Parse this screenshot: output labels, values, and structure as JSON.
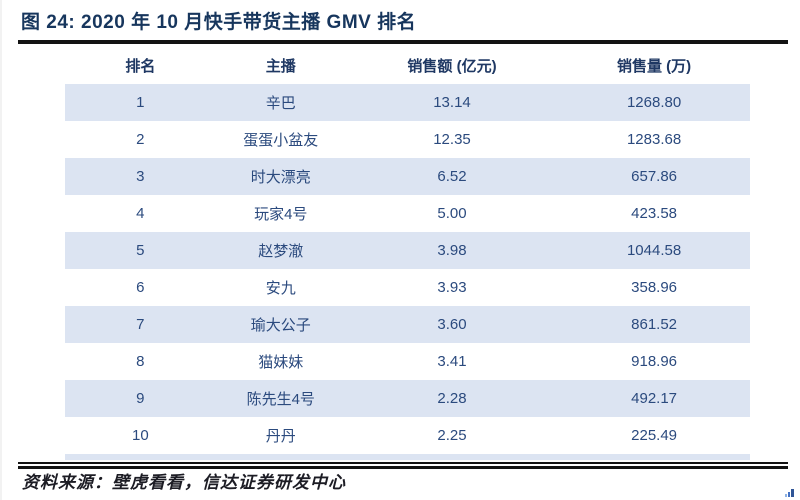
{
  "page": {
    "title": "图 24: 2020 年 10 月快手带货主播 GMV 排名",
    "source_note": "资料来源：壁虎看看，信达证券研发中心"
  },
  "table": {
    "columns": [
      "排名",
      "主播",
      "销售额 (亿元)",
      "销售量 (万)"
    ],
    "rows": [
      [
        "1",
        "辛巴",
        "13.14",
        "1268.80"
      ],
      [
        "2",
        "蛋蛋小盆友",
        "12.35",
        "1283.68"
      ],
      [
        "3",
        "时大漂亮",
        "6.52",
        "657.86"
      ],
      [
        "4",
        "玩家4号",
        "5.00",
        "423.58"
      ],
      [
        "5",
        "赵梦澈",
        "3.98",
        "1044.58"
      ],
      [
        "6",
        "安九",
        "3.93",
        "358.96"
      ],
      [
        "7",
        "瑜大公子",
        "3.60",
        "861.52"
      ],
      [
        "8",
        "猫妹妹",
        "3.41",
        "918.96"
      ],
      [
        "9",
        "陈先生4号",
        "2.28",
        "492.17"
      ],
      [
        "10",
        "丹丹",
        "2.25",
        "225.49"
      ]
    ]
  },
  "icons": {
    "corner_logo": "mini-bar-chart-logo"
  },
  "colors": {
    "title_text": "#17365d",
    "header_text": "#1f3863",
    "cell_text": "#2b4a7e",
    "row_shade": "#dce4f2",
    "rule": "#131313",
    "corner_logo_blue": "#4472c4"
  }
}
